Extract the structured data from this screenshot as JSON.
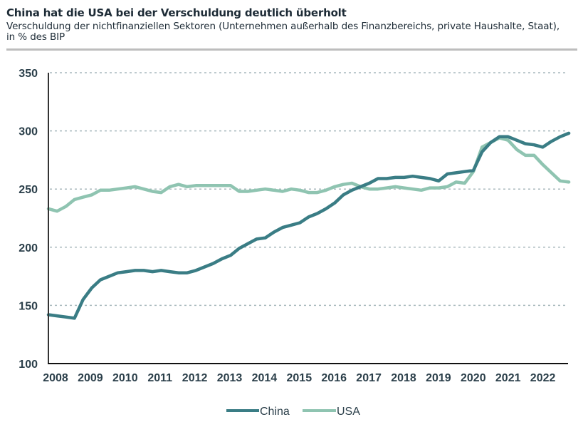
{
  "header": {
    "title": "China hat die USA bei der Verschuldung deutlich überholt",
    "subtitle": "Verschuldung der nichtfinanziellen Sektoren (Unternehmen außerhalb des Finanzbereichs, private Haushalte, Staat), in % des BIP"
  },
  "chart_data": {
    "type": "line",
    "title": "China hat die USA bei der Verschuldung deutlich überholt",
    "subtitle": "Verschuldung der nichtfinanziellen Sektoren (Unternehmen außerhalb des Finanzbereichs, private Haushalte, Staat), in % des BIP",
    "xlabel": "",
    "ylabel": "",
    "ylim": [
      100,
      350
    ],
    "yticks": [
      100,
      150,
      200,
      250,
      300,
      350
    ],
    "xlim": [
      2008.0,
      2022.95
    ],
    "xtick_labels": [
      "2008",
      "2009",
      "2010",
      "2011",
      "2012",
      "2013",
      "2014",
      "2015",
      "2016",
      "2017",
      "2018",
      "2019",
      "2020",
      "2021",
      "2022"
    ],
    "grid": "horizontal-dotted",
    "legend_position": "bottom-center",
    "frequency": "quarterly",
    "x_start": 2008.0,
    "x_step": 0.25,
    "series": [
      {
        "name": "China",
        "color": "#3a7d85",
        "values": [
          142,
          141,
          140,
          139,
          155,
          165,
          172,
          175,
          178,
          179,
          180,
          180,
          179,
          180,
          179,
          178,
          178,
          180,
          183,
          186,
          190,
          193,
          199,
          203,
          207,
          208,
          213,
          217,
          219,
          221,
          226,
          229,
          233,
          238,
          245,
          249,
          252,
          255,
          259,
          259,
          260,
          260,
          261,
          260,
          259,
          257,
          263,
          264,
          265,
          266,
          282,
          290,
          295,
          295,
          292,
          289,
          288,
          286,
          291,
          295,
          298
        ]
      },
      {
        "name": "USA",
        "color": "#8fc4b1",
        "values": [
          233,
          231,
          235,
          241,
          243,
          245,
          249,
          249,
          250,
          251,
          252,
          250,
          248,
          247,
          252,
          254,
          252,
          253,
          253,
          253,
          253,
          253,
          248,
          248,
          249,
          250,
          249,
          248,
          250,
          249,
          247,
          247,
          249,
          252,
          254,
          255,
          252,
          250,
          250,
          251,
          252,
          251,
          250,
          249,
          251,
          251,
          252,
          256,
          255,
          265,
          286,
          290,
          294,
          292,
          284,
          279,
          279,
          271,
          264,
          257,
          256
        ]
      }
    ]
  },
  "legend": {
    "items": [
      {
        "label": "China"
      },
      {
        "label": "USA"
      }
    ]
  }
}
